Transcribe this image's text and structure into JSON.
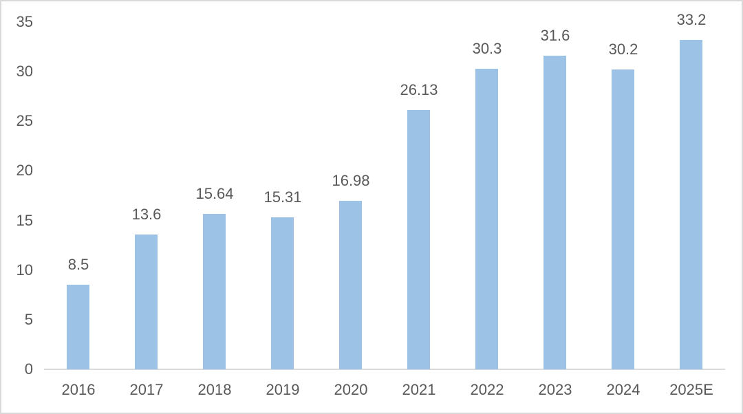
{
  "frame": {
    "background": "#ffffff",
    "border_color": "#d9d9d9"
  },
  "chart_data": {
    "type": "bar",
    "title": "",
    "xlabel": "",
    "ylabel": "",
    "categories": [
      "2016",
      "2017",
      "2018",
      "2019",
      "2020",
      "2021",
      "2022",
      "2023",
      "2024",
      "2025E"
    ],
    "values": [
      8.5,
      13.6,
      15.64,
      15.31,
      16.98,
      26.13,
      30.3,
      31.6,
      30.2,
      33.2
    ],
    "value_labels": [
      "8.5",
      "13.6",
      "15.64",
      "15.31",
      "16.98",
      "26.13",
      "30.3",
      "31.6",
      "30.2",
      "33.2"
    ],
    "ylim": [
      0,
      35
    ],
    "yticks": [
      "0",
      "5",
      "10",
      "15",
      "20",
      "25",
      "30",
      "35"
    ],
    "grid": false,
    "legend": "none",
    "bar_color": "#9cc3e6",
    "axis_line_color": "#d9d9d9",
    "tick_label_color": "#595959",
    "data_label_color": "#595959"
  }
}
